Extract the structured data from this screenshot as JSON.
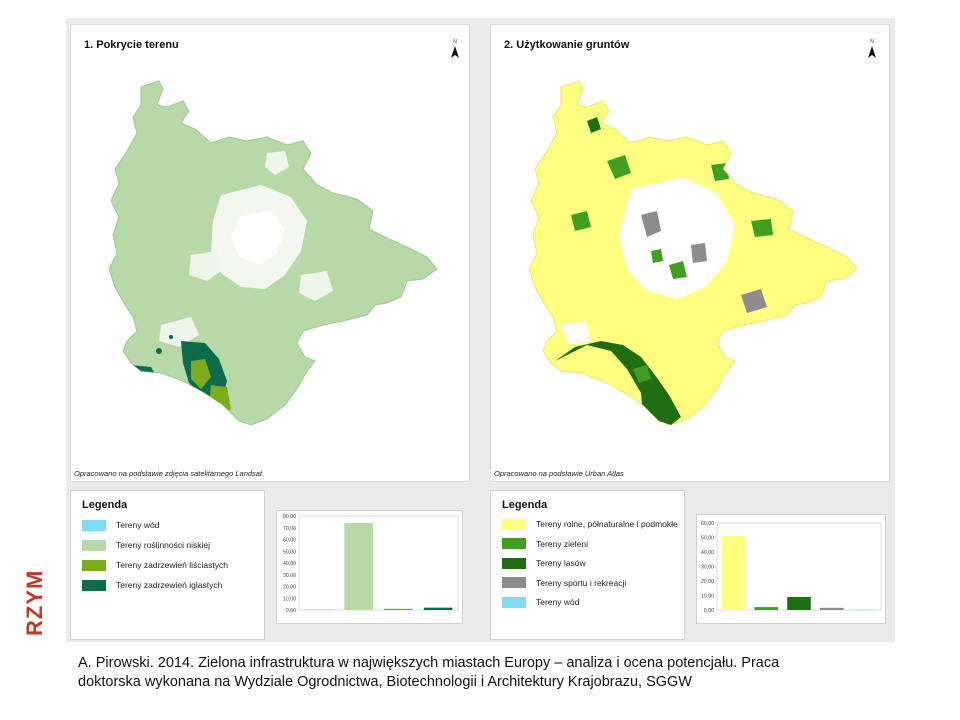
{
  "side_label": "RZYM",
  "caption": {
    "line1": "A. Pirowski. 2014. Zielona infrastruktura w największych miastach Europy – analiza i ocena potencjału. Praca",
    "line2": "doktorska wykonana na Wydziale Ogrodnictwa, Biotechnologii i Architektury Krajobrazu, SGGW"
  },
  "map1": {
    "title": "1. Pokrycie terenu",
    "north_label": "N",
    "source": "Opracowano na podstawie zdjęcia satelitarnego Landsat",
    "legend": {
      "title": "Legenda",
      "items": [
        {
          "label": "Tereny wód",
          "color": "#7fdcf5"
        },
        {
          "label": "Tereny roślinności niskiej",
          "color": "#b7d9a8"
        },
        {
          "label": "Tereny zadrzewień liściastych",
          "color": "#7aac1e"
        },
        {
          "label": "Tereny zadrzewień iglastych",
          "color": "#0d6b4d"
        }
      ]
    }
  },
  "map2": {
    "title": "2. Użytkowanie gruntów",
    "north_label": "N",
    "source": "Opracowano na podstawie Urban Atlas",
    "legend": {
      "title": "Legenda",
      "items": [
        {
          "label": "Tereny rolne, półnaturalne i podmokłe",
          "color": "#ffff80"
        },
        {
          "label": "Tereny zieleni",
          "color": "#3fa020"
        },
        {
          "label": "Tereny lasów",
          "color": "#1f6e12"
        },
        {
          "label": "Tereny sportu i rekreacji",
          "color": "#8c8c8c"
        },
        {
          "label": "Tereny wód",
          "color": "#7fdcf5"
        }
      ]
    }
  },
  "chart_data": [
    {
      "type": "bar",
      "categories": [
        "Tereny wód",
        "Tereny roślinności niskiej",
        "Tereny zadrzewień liściastych",
        "Tereny zadrzewień iglastych"
      ],
      "values": [
        0.5,
        74,
        1,
        2
      ],
      "colors": [
        "#7fdcf5",
        "#b7d9a8",
        "#7aac1e",
        "#0d6b4d"
      ],
      "yticks": [
        "0,00",
        "10,00",
        "20,00",
        "30,00",
        "40,00",
        "50,00",
        "60,00",
        "70,00",
        "80,00"
      ],
      "ylim": [
        0,
        80
      ]
    },
    {
      "type": "bar",
      "categories": [
        "Tereny rolne, półnaturalne i podmokłe",
        "Tereny zieleni",
        "Tereny lasów",
        "Tereny sportu i rekreacji",
        "Tereny wód"
      ],
      "values": [
        51,
        2,
        9,
        1.5,
        0.3
      ],
      "colors": [
        "#ffff80",
        "#3fa020",
        "#1f6e12",
        "#8c8c8c",
        "#7fdcf5"
      ],
      "yticks": [
        "0,00",
        "10,00",
        "20,00",
        "30,00",
        "40,00",
        "50,00",
        "60,00"
      ],
      "ylim": [
        0,
        60
      ]
    }
  ]
}
